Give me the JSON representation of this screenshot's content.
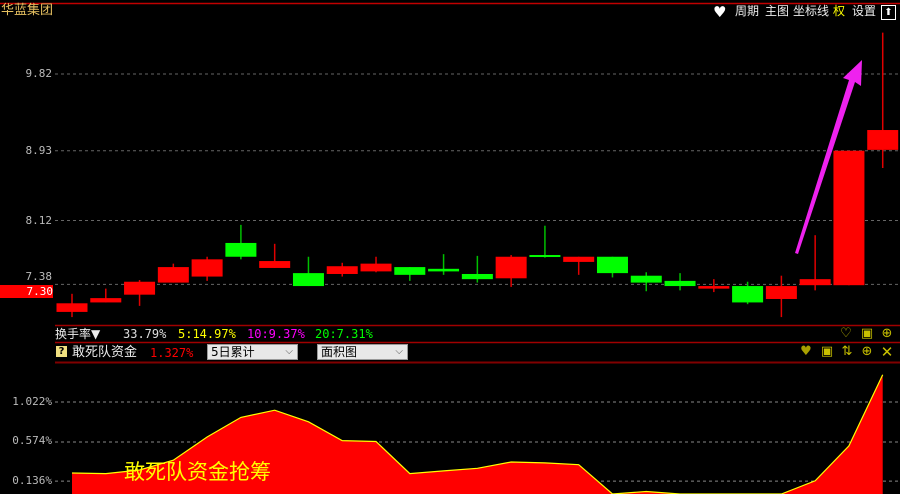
{
  "header": {
    "stock_name": "华蓝集团",
    "buttons": [
      "周期",
      "主图",
      "坐标线",
      "权",
      "设置"
    ],
    "icons": [
      "heart-icon",
      "expand-up-icon"
    ]
  },
  "price_axis": {
    "ticks": [
      "9.82",
      "8.93",
      "8.12",
      "7.38"
    ],
    "tick_values": [
      9.82,
      8.93,
      8.12,
      7.38
    ],
    "current_label": "7.30"
  },
  "indicator1": {
    "name": "换手率▼",
    "value": "33.79%",
    "ma5": "5:14.97%",
    "ma10": "10:9.37%",
    "ma20": "20:7.31%"
  },
  "indicator2": {
    "help": "?",
    "name": "敢死队资金",
    "value": "1.327%",
    "period_select": "5日累计",
    "style_select": "面积图",
    "axis_ticks": [
      "1.022%",
      "0.574%",
      "0.136%"
    ],
    "axis_values": [
      1.022,
      0.574,
      0.136
    ],
    "annotation": "敢死队资金抢筹"
  },
  "colors": {
    "up": "#ff0000",
    "down": "#00ff00",
    "title": "#e6c060",
    "ma5": "#ffff00",
    "ma10": "#ff00ff",
    "ma20": "#00ff00",
    "arrow": "#ee22ee",
    "area": "#ff0000",
    "area_line": "#ffff00"
  },
  "chart_data": {
    "type": "candlestick",
    "candles": [
      {
        "o": 7.06,
        "h": 7.27,
        "l": 7.0,
        "c": 7.16
      },
      {
        "o": 7.17,
        "h": 7.33,
        "l": 7.17,
        "c": 7.22
      },
      {
        "o": 7.26,
        "h": 7.43,
        "l": 7.13,
        "c": 7.41
      },
      {
        "o": 7.4,
        "h": 7.62,
        "l": 7.4,
        "c": 7.58
      },
      {
        "o": 7.47,
        "h": 7.7,
        "l": 7.42,
        "c": 7.67
      },
      {
        "o": 7.86,
        "h": 8.07,
        "l": 7.67,
        "c": 7.7
      },
      {
        "o": 7.57,
        "h": 7.85,
        "l": 7.57,
        "c": 7.65
      },
      {
        "o": 7.51,
        "h": 7.7,
        "l": 7.36,
        "c": 7.36
      },
      {
        "o": 7.5,
        "h": 7.63,
        "l": 7.47,
        "c": 7.59
      },
      {
        "o": 7.53,
        "h": 7.7,
        "l": 7.52,
        "c": 7.62
      },
      {
        "o": 7.58,
        "h": 7.58,
        "l": 7.42,
        "c": 7.49
      },
      {
        "o": 7.56,
        "h": 7.73,
        "l": 7.49,
        "c": 7.53
      },
      {
        "o": 7.5,
        "h": 7.71,
        "l": 7.4,
        "c": 7.44
      },
      {
        "o": 7.45,
        "h": 7.72,
        "l": 7.35,
        "c": 7.7
      },
      {
        "o": 7.72,
        "h": 8.06,
        "l": 7.69,
        "c": 7.71
      },
      {
        "o": 7.64,
        "h": 7.7,
        "l": 7.49,
        "c": 7.7
      },
      {
        "o": 7.7,
        "h": 7.7,
        "l": 7.46,
        "c": 7.51
      },
      {
        "o": 7.48,
        "h": 7.52,
        "l": 7.3,
        "c": 7.4
      },
      {
        "o": 7.42,
        "h": 7.51,
        "l": 7.31,
        "c": 7.36
      },
      {
        "o": 7.33,
        "h": 7.44,
        "l": 7.29,
        "c": 7.36
      },
      {
        "o": 7.36,
        "h": 7.41,
        "l": 7.15,
        "c": 7.17
      },
      {
        "o": 7.21,
        "h": 7.48,
        "l": 7.0,
        "c": 7.36
      },
      {
        "o": 7.37,
        "h": 7.95,
        "l": 7.31,
        "c": 7.44
      },
      {
        "o": 7.37,
        "h": 8.93,
        "l": 7.37,
        "c": 8.93
      },
      {
        "o": 8.94,
        "h": 10.3,
        "l": 8.73,
        "c": 9.17
      }
    ],
    "indicator_area_values": [
      0.227,
      0.22,
      0.26,
      0.37,
      0.63,
      0.85,
      0.93,
      0.8,
      0.59,
      0.58,
      0.22,
      0.25,
      0.28,
      0.35,
      0.34,
      0.32,
      -0.05,
      0.02,
      -0.05,
      -0.1,
      -0.1,
      -0.02,
      0.14,
      0.53,
      1.327
    ]
  }
}
